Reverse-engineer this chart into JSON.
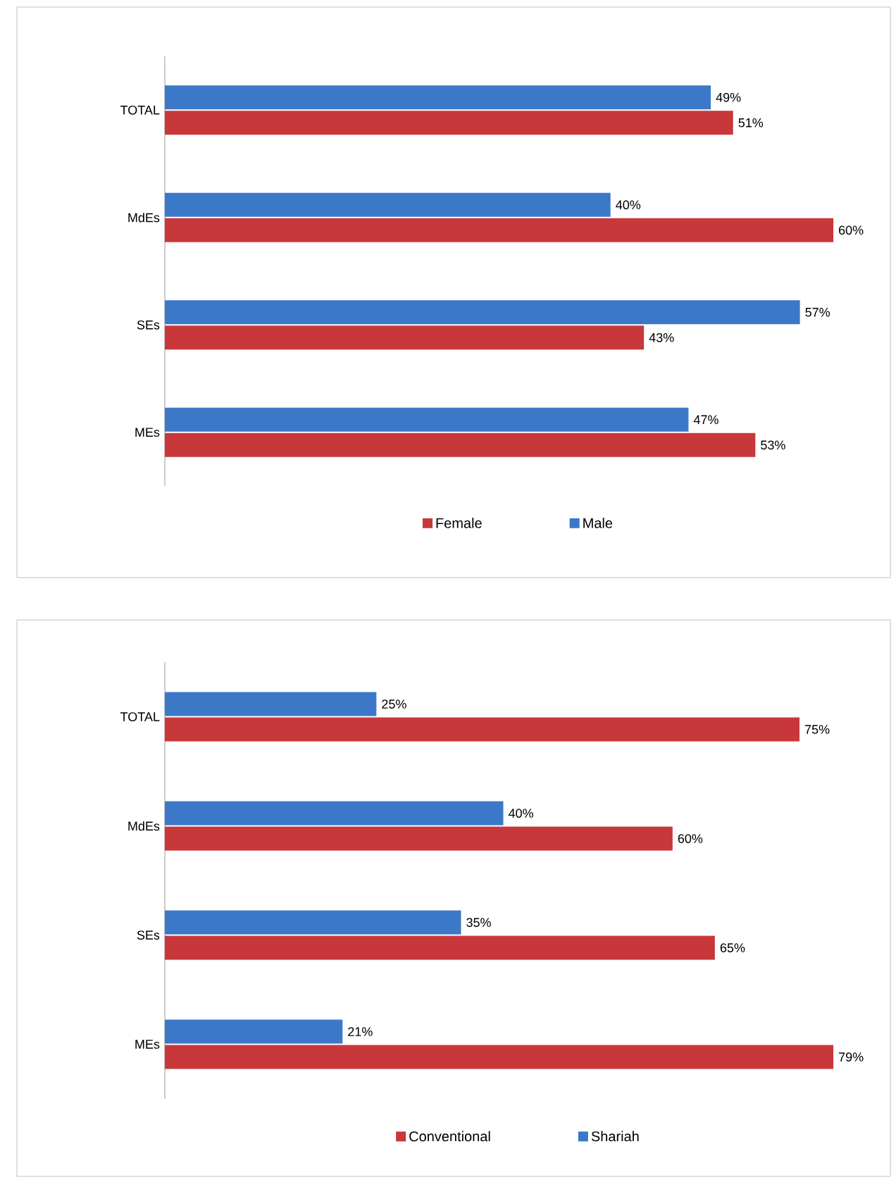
{
  "chart_data": [
    {
      "type": "bar",
      "orientation": "horizontal",
      "categories": [
        "TOTAL",
        "MdEs",
        "SEs",
        "MEs"
      ],
      "legend": "bottom",
      "data_labels": true,
      "series": [
        {
          "name": "Female",
          "color": "#c8373a",
          "values": [
            51,
            60,
            43,
            53
          ],
          "value_labels": [
            "51%",
            "60%",
            "43%",
            "53%"
          ]
        },
        {
          "name": "Male",
          "color": "#3b78c8",
          "values": [
            49,
            40,
            57,
            47
          ],
          "value_labels": [
            "49%",
            "40%",
            "57%",
            "47%"
          ]
        }
      ]
    },
    {
      "type": "bar",
      "orientation": "horizontal",
      "categories": [
        "TOTAL",
        "MdEs",
        "SEs",
        "MEs"
      ],
      "legend": "bottom",
      "data_labels": true,
      "series": [
        {
          "name": "Conventional",
          "color": "#c8373a",
          "values": [
            75,
            60,
            65,
            79
          ],
          "value_labels": [
            "75%",
            "60%",
            "65%",
            "79%"
          ]
        },
        {
          "name": "Shariah",
          "color": "#3b78c8",
          "values": [
            25,
            40,
            35,
            21
          ],
          "value_labels": [
            "25%",
            "40%",
            "35%",
            "21%"
          ]
        }
      ]
    }
  ]
}
